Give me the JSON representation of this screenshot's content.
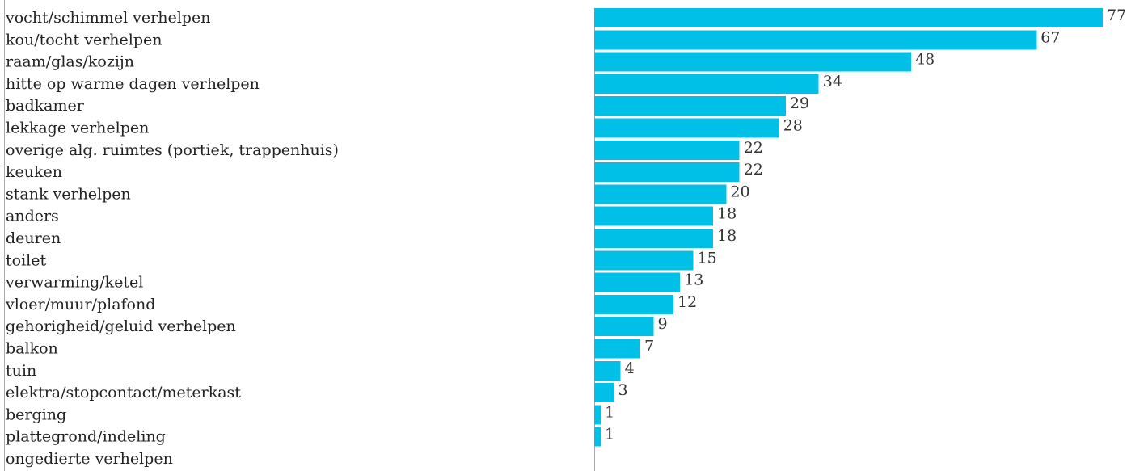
{
  "chart_data": {
    "type": "bar",
    "orientation": "horizontal",
    "categories": [
      "vocht/schimmel verhelpen",
      "kou/tocht verhelpen",
      "raam/glas/kozijn",
      "hitte op warme dagen verhelpen",
      "badkamer",
      "lekkage verhelpen",
      "overige alg. ruimtes (portiek, trappenhuis)",
      "keuken",
      "stank verhelpen",
      "anders",
      "deuren",
      "toilet",
      "verwarming/ketel",
      "vloer/muur/plafond",
      "gehorigheid/geluid verhelpen",
      "balkon",
      "tuin",
      "elektra/stopcontact/meterkast",
      "berging",
      "plattegrond/indeling",
      "ongedierte verhelpen"
    ],
    "values": [
      77,
      67,
      48,
      34,
      29,
      28,
      22,
      22,
      20,
      18,
      18,
      15,
      13,
      12,
      9,
      7,
      4,
      3,
      1,
      1,
      null
    ],
    "value_labels": [
      "77",
      "67",
      "48",
      "34",
      "29",
      "28",
      "22",
      "22",
      "20",
      "18",
      "18",
      "15",
      "13",
      "12",
      "9",
      "7",
      "4",
      "3",
      "1",
      "1",
      ""
    ],
    "bar_color": "#00c0e8",
    "axis_color": "#aaaaaa",
    "xlim": [
      0,
      77
    ],
    "grid": false,
    "legend": "none"
  }
}
